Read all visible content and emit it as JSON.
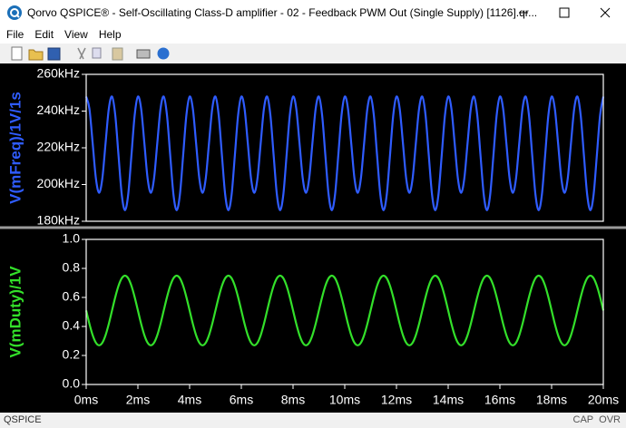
{
  "window": {
    "title": "Qorvo QSPICE® - Self-Oscillating Class-D amplifier - 02 - Feedback PWM Out (Single Supply) [1126].qr...",
    "menu": [
      "File",
      "Edit",
      "View",
      "Help"
    ],
    "status_left": "QSPICE",
    "indicators": [
      "CAP",
      "OVR"
    ]
  },
  "chart_data": [
    {
      "type": "line",
      "y_label": "V(mFreq)/1V/1s",
      "color": "#2f5cff",
      "xlim": [
        0,
        20
      ],
      "ylim": [
        180,
        260
      ],
      "yticks": [
        {
          "value": 180,
          "label": "180kHz"
        },
        {
          "value": 200,
          "label": "200kHz"
        },
        {
          "value": 220,
          "label": "220kHz"
        },
        {
          "value": 240,
          "label": "240kHz"
        },
        {
          "value": 260,
          "label": "260kHz"
        }
      ],
      "x": [
        0,
        0.125,
        0.25,
        0.375,
        0.5,
        0.625,
        0.75,
        0.875,
        1,
        1.125,
        1.25,
        1.375,
        1.5,
        1.625,
        1.75,
        1.875,
        2,
        2.125,
        2.25,
        2.375,
        2.5,
        2.625,
        2.75,
        2.875,
        3,
        3.125,
        3.25,
        3.375,
        3.5,
        3.625,
        3.75,
        3.875,
        4,
        4.125,
        4.25,
        4.375,
        4.5,
        4.625,
        4.75,
        4.875,
        5,
        5.125,
        5.25,
        5.375,
        5.5,
        5.625,
        5.75,
        5.875,
        6,
        6.125,
        6.25,
        6.375,
        6.5,
        6.625,
        6.75,
        6.875,
        7,
        7.125,
        7.25,
        7.375,
        7.5,
        7.625,
        7.75,
        7.875,
        8,
        8.125,
        8.25,
        8.375,
        8.5,
        8.625,
        8.75,
        8.875,
        9,
        9.125,
        9.25,
        9.375,
        9.5,
        9.625,
        9.75,
        9.875,
        10,
        10.125,
        10.25,
        10.375,
        10.5,
        10.625,
        10.75,
        10.875,
        11,
        11.125,
        11.25,
        11.375,
        11.5,
        11.625,
        11.75,
        11.875,
        12,
        12.125,
        12.25,
        12.375,
        12.5,
        12.625,
        12.75,
        12.875,
        13,
        13.125,
        13.25,
        13.375,
        13.5,
        13.625,
        13.75,
        13.875,
        14,
        14.125,
        14.25,
        14.375,
        14.5,
        14.625,
        14.75,
        14.875,
        15,
        15.125,
        15.25,
        15.375,
        15.5,
        15.625,
        15.75,
        15.875,
        16,
        16.125,
        16.25,
        16.375,
        16.5,
        16.625,
        16.75,
        16.875,
        17,
        17.125,
        17.25,
        17.375,
        17.5,
        17.625,
        17.75,
        17.875,
        18,
        18.125,
        18.25,
        18.375,
        18.5,
        18.625,
        18.75,
        18.875,
        19,
        19.125,
        19.25,
        19.375,
        19.5,
        19.625,
        19.75,
        19.875,
        20
      ],
      "values": [
        247.9,
        241.3,
        222.6,
        203.4,
        195.5,
        203.4,
        222.6,
        241.3,
        247.9,
        237.7,
        215.9,
        194.6,
        186,
        194.6,
        215.9,
        237.7,
        247.9,
        241.3,
        222.6,
        203.4,
        195.5,
        203.4,
        222.6,
        241.3,
        247.9,
        237.7,
        215.9,
        194.6,
        186,
        194.6,
        215.9,
        237.7,
        247.9,
        241.3,
        222.6,
        203.4,
        195.5,
        203.4,
        222.6,
        241.3,
        247.9,
        237.7,
        215.9,
        194.6,
        186,
        194.6,
        215.9,
        237.7,
        247.9,
        241.3,
        222.6,
        203.4,
        195.5,
        203.4,
        222.6,
        241.3,
        247.9,
        237.7,
        215.9,
        194.6,
        186,
        194.6,
        215.9,
        237.7,
        247.9,
        241.3,
        222.6,
        203.4,
        195.5,
        203.4,
        222.6,
        241.3,
        247.9,
        237.7,
        215.9,
        194.6,
        186,
        194.6,
        215.9,
        237.7,
        247.9,
        241.3,
        222.6,
        203.4,
        195.5,
        203.4,
        222.6,
        241.3,
        247.9,
        237.7,
        215.9,
        194.6,
        186,
        194.6,
        215.9,
        237.7,
        247.9,
        241.3,
        222.6,
        203.4,
        195.5,
        203.4,
        222.6,
        241.3,
        247.9,
        237.7,
        215.9,
        194.6,
        186,
        194.6,
        215.9,
        237.7,
        247.9,
        241.3,
        222.6,
        203.4,
        195.5,
        203.4,
        222.6,
        241.3,
        247.9,
        237.7,
        215.9,
        194.6,
        186,
        194.6,
        215.9,
        237.7,
        247.9,
        241.3,
        222.6,
        203.4,
        195.5,
        203.4,
        222.6,
        241.3,
        247.9,
        237.7,
        215.9,
        194.6,
        186,
        194.6,
        215.9,
        237.7,
        247.9,
        241.3,
        222.6,
        203.4,
        195.5,
        203.4,
        222.6,
        241.3,
        247.9,
        237.7,
        215.9,
        194.6,
        186,
        194.6,
        215.9,
        237.7,
        247.9
      ]
    },
    {
      "type": "line",
      "y_label": "V(mDuty)/1V",
      "color": "#33e02a",
      "xlim": [
        0,
        20
      ],
      "ylim": [
        0,
        1
      ],
      "yticks": [
        {
          "value": 0,
          "label": "0.0"
        },
        {
          "value": 0.2,
          "label": "0.2"
        },
        {
          "value": 0.4,
          "label": "0.4"
        },
        {
          "value": 0.6,
          "label": "0.6"
        },
        {
          "value": 0.8,
          "label": "0.8"
        },
        {
          "value": 1,
          "label": "1.0"
        }
      ],
      "xticks": [
        {
          "value": 0,
          "label": "0ms"
        },
        {
          "value": 2,
          "label": "2ms"
        },
        {
          "value": 4,
          "label": "4ms"
        },
        {
          "value": 6,
          "label": "6ms"
        },
        {
          "value": 8,
          "label": "8ms"
        },
        {
          "value": 10,
          "label": "10ms"
        },
        {
          "value": 12,
          "label": "12ms"
        },
        {
          "value": 14,
          "label": "14ms"
        },
        {
          "value": 16,
          "label": "16ms"
        },
        {
          "value": 18,
          "label": "18ms"
        },
        {
          "value": 20,
          "label": "20ms"
        }
      ],
      "x": [
        0,
        0.125,
        0.25,
        0.375,
        0.5,
        0.625,
        0.75,
        0.875,
        1,
        1.125,
        1.25,
        1.375,
        1.5,
        1.625,
        1.75,
        1.875,
        2,
        2.125,
        2.25,
        2.375,
        2.5,
        2.625,
        2.75,
        2.875,
        3,
        3.125,
        3.25,
        3.375,
        3.5,
        3.625,
        3.75,
        3.875,
        4,
        4.125,
        4.25,
        4.375,
        4.5,
        4.625,
        4.75,
        4.875,
        5,
        5.125,
        5.25,
        5.375,
        5.5,
        5.625,
        5.75,
        5.875,
        6,
        6.125,
        6.25,
        6.375,
        6.5,
        6.625,
        6.75,
        6.875,
        7,
        7.125,
        7.25,
        7.375,
        7.5,
        7.625,
        7.75,
        7.875,
        8,
        8.125,
        8.25,
        8.375,
        8.5,
        8.625,
        8.75,
        8.875,
        9,
        9.125,
        9.25,
        9.375,
        9.5,
        9.625,
        9.75,
        9.875,
        10,
        10.125,
        10.25,
        10.375,
        10.5,
        10.625,
        10.75,
        10.875,
        11,
        11.125,
        11.25,
        11.375,
        11.5,
        11.625,
        11.75,
        11.875,
        12,
        12.125,
        12.25,
        12.375,
        12.5,
        12.625,
        12.75,
        12.875,
        13,
        13.125,
        13.25,
        13.375,
        13.5,
        13.625,
        13.75,
        13.875,
        14,
        14.125,
        14.25,
        14.375,
        14.5,
        14.625,
        14.75,
        14.875,
        15,
        15.125,
        15.25,
        15.375,
        15.5,
        15.625,
        15.75,
        15.875,
        16,
        16.125,
        16.25,
        16.375,
        16.5,
        16.625,
        16.75,
        16.875,
        17,
        17.125,
        17.25,
        17.375,
        17.5,
        17.625,
        17.75,
        17.875,
        18,
        18.125,
        18.25,
        18.375,
        18.5,
        18.625,
        18.75,
        18.875,
        19,
        19.125,
        19.25,
        19.375,
        19.5,
        19.625,
        19.75,
        19.875,
        20
      ],
      "values": [
        0.51,
        0.418,
        0.34,
        0.288,
        0.27,
        0.288,
        0.34,
        0.418,
        0.51,
        0.602,
        0.68,
        0.732,
        0.75,
        0.732,
        0.68,
        0.602,
        0.51,
        0.418,
        0.34,
        0.288,
        0.27,
        0.288,
        0.34,
        0.418,
        0.51,
        0.602,
        0.68,
        0.732,
        0.75,
        0.732,
        0.68,
        0.602,
        0.51,
        0.418,
        0.34,
        0.288,
        0.27,
        0.288,
        0.34,
        0.418,
        0.51,
        0.602,
        0.68,
        0.732,
        0.75,
        0.732,
        0.68,
        0.602,
        0.51,
        0.418,
        0.34,
        0.288,
        0.27,
        0.288,
        0.34,
        0.418,
        0.51,
        0.602,
        0.68,
        0.732,
        0.75,
        0.732,
        0.68,
        0.602,
        0.51,
        0.418,
        0.34,
        0.288,
        0.27,
        0.288,
        0.34,
        0.418,
        0.51,
        0.602,
        0.68,
        0.732,
        0.75,
        0.732,
        0.68,
        0.602,
        0.51,
        0.418,
        0.34,
        0.288,
        0.27,
        0.288,
        0.34,
        0.418,
        0.51,
        0.602,
        0.68,
        0.732,
        0.75,
        0.732,
        0.68,
        0.602,
        0.51,
        0.418,
        0.34,
        0.288,
        0.27,
        0.288,
        0.34,
        0.418,
        0.51,
        0.602,
        0.68,
        0.732,
        0.75,
        0.732,
        0.68,
        0.602,
        0.51,
        0.418,
        0.34,
        0.288,
        0.27,
        0.288,
        0.34,
        0.418,
        0.51,
        0.602,
        0.68,
        0.732,
        0.75,
        0.732,
        0.68,
        0.602,
        0.51,
        0.418,
        0.34,
        0.288,
        0.27,
        0.288,
        0.34,
        0.418,
        0.51,
        0.602,
        0.68,
        0.732,
        0.75,
        0.732,
        0.68,
        0.602,
        0.51,
        0.418,
        0.34,
        0.288,
        0.27,
        0.288,
        0.34,
        0.418,
        0.51,
        0.602,
        0.68,
        0.732,
        0.75,
        0.732,
        0.68,
        0.602,
        0.51
      ]
    }
  ]
}
